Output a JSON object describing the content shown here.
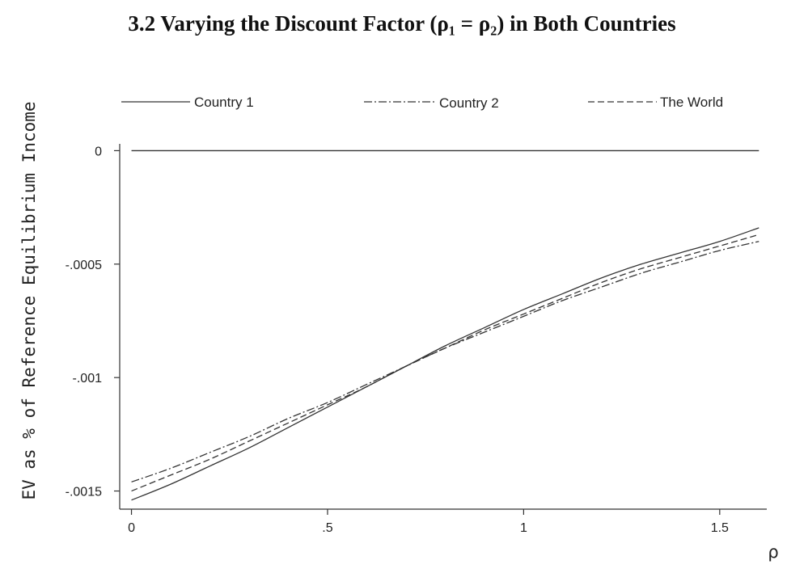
{
  "chart_data": {
    "type": "line",
    "title": "3.2 Varying the Discount Factor (ρ₁ = ρ₂) in Both Countries",
    "xlabel": "ρ",
    "ylabel": "EV as % of Reference Equilibrium Income",
    "xlim": [
      -0.03,
      1.62
    ],
    "ylim": [
      -0.00158,
      3e-05
    ],
    "xticks": [
      {
        "value": 0,
        "label": "0"
      },
      {
        "value": 0.5,
        "label": ".5"
      },
      {
        "value": 1,
        "label": "1"
      },
      {
        "value": 1.5,
        "label": "1.5"
      }
    ],
    "yticks": [
      {
        "value": 0,
        "label": "0"
      },
      {
        "value": -0.0005,
        "label": "-.0005"
      },
      {
        "value": -0.001,
        "label": "-.001"
      },
      {
        "value": -0.0015,
        "label": "-.0015"
      }
    ],
    "grid": false,
    "legend": {
      "position": "top",
      "entries": [
        "Country 1",
        "Country 2",
        "The World"
      ]
    },
    "x": [
      0,
      0.1,
      0.2,
      0.3,
      0.4,
      0.5,
      0.6,
      0.7,
      0.8,
      0.9,
      1.0,
      1.1,
      1.2,
      1.3,
      1.4,
      1.5,
      1.6
    ],
    "reference_line": {
      "y": 0,
      "style": "solid"
    },
    "series": [
      {
        "name": "Country 1",
        "style": "solid",
        "values": [
          -0.00154,
          -0.00147,
          -0.00139,
          -0.00131,
          -0.00122,
          -0.00113,
          -0.00104,
          -0.00095,
          -0.00086,
          -0.00078,
          -0.0007,
          -0.00063,
          -0.00056,
          -0.0005,
          -0.00045,
          -0.0004,
          -0.00034
        ]
      },
      {
        "name": "Country 2",
        "style": "dashdot",
        "values": [
          -0.00146,
          -0.0014,
          -0.00133,
          -0.00126,
          -0.00118,
          -0.00111,
          -0.00103,
          -0.00095,
          -0.00087,
          -0.0008,
          -0.00073,
          -0.00066,
          -0.0006,
          -0.00054,
          -0.00049,
          -0.00044,
          -0.0004
        ]
      },
      {
        "name": "The World",
        "style": "dashed",
        "values": [
          -0.0015,
          -0.00143,
          -0.00136,
          -0.00128,
          -0.0012,
          -0.00112,
          -0.00104,
          -0.00095,
          -0.00087,
          -0.00079,
          -0.00072,
          -0.00065,
          -0.00058,
          -0.00052,
          -0.00047,
          -0.00042,
          -0.00037
        ]
      }
    ]
  }
}
